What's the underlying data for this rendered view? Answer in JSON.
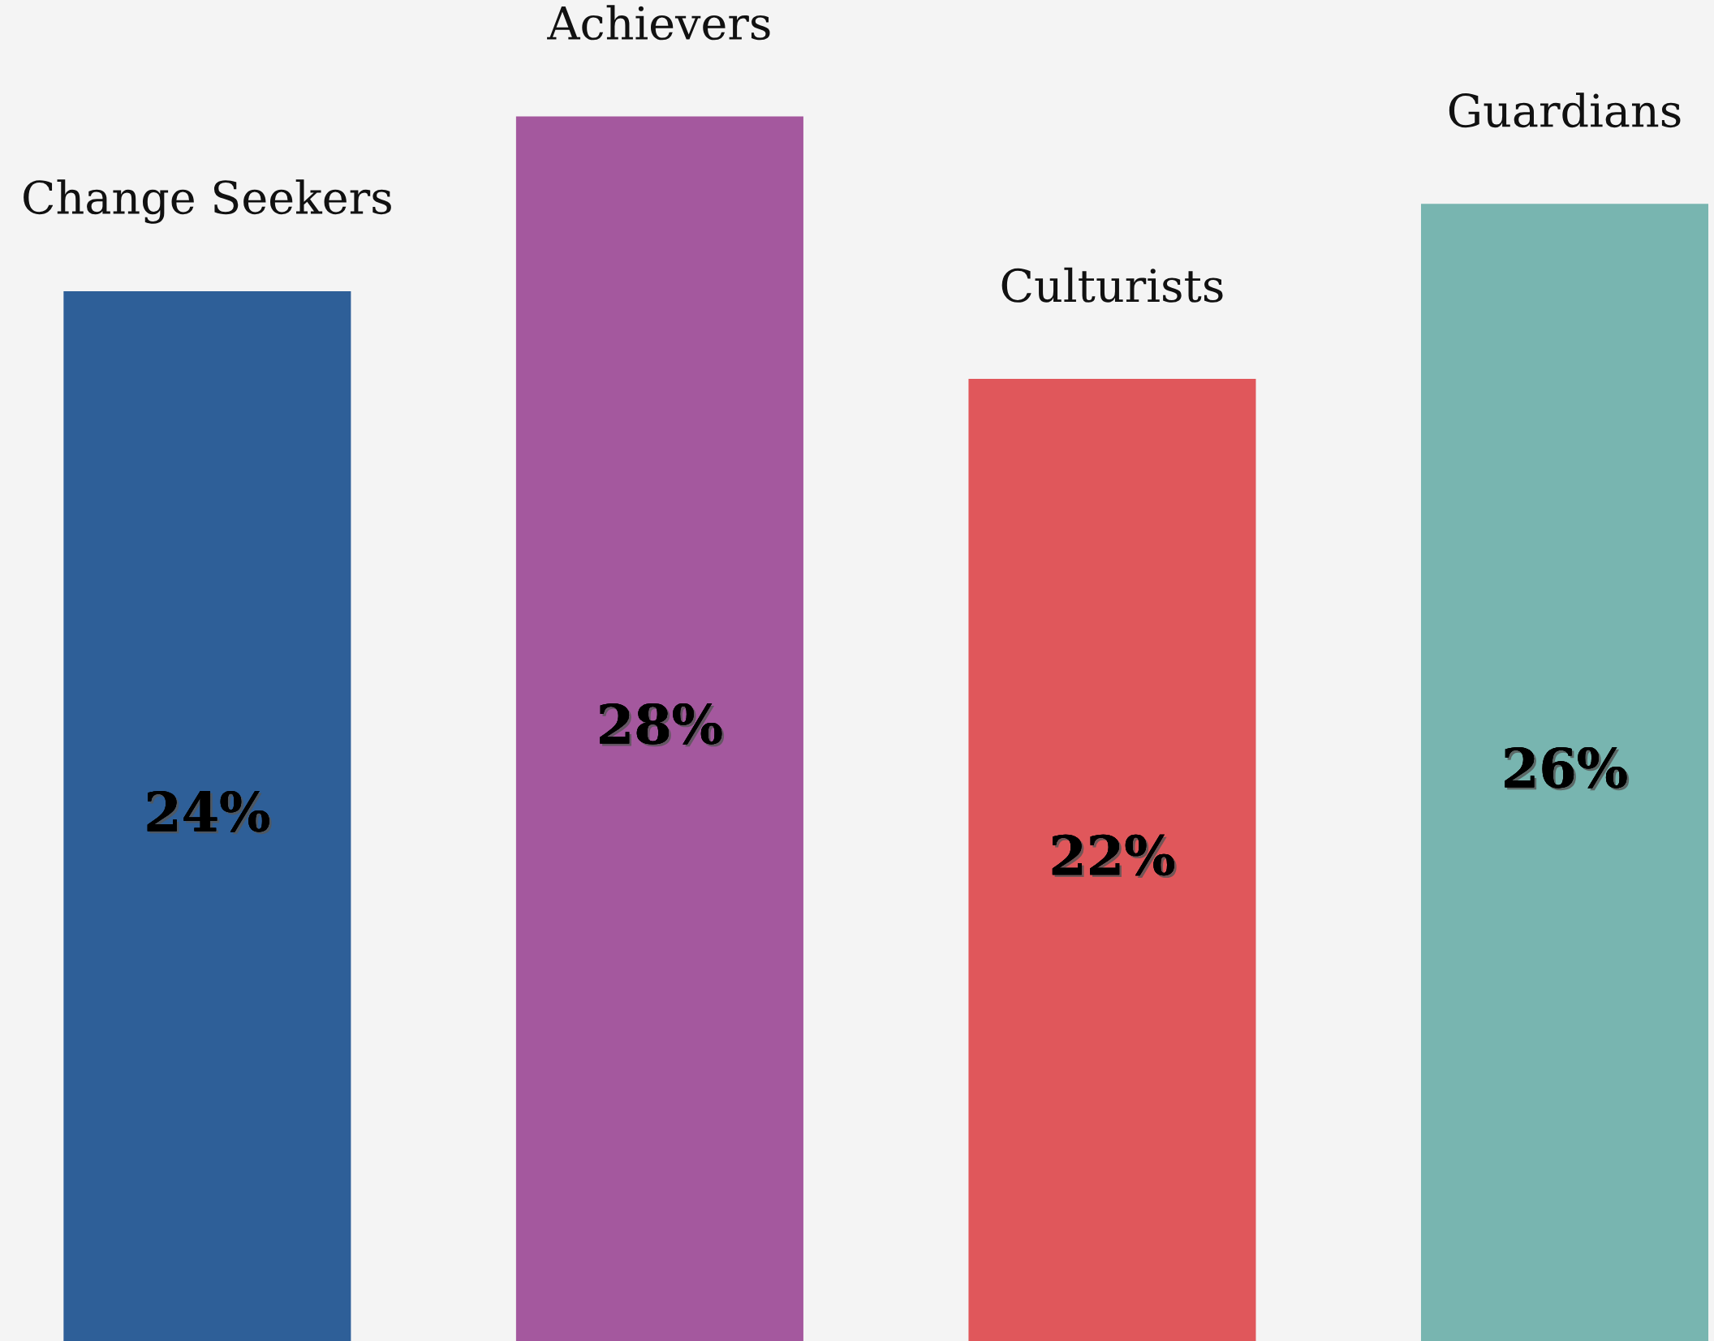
{
  "chart_data": {
    "type": "bar",
    "categories": [
      "Change Seekers",
      "Achievers",
      "Culturists",
      "Guardians"
    ],
    "values": [
      24,
      28,
      22,
      26
    ],
    "colors": [
      "#2e5f98",
      "#a4589e",
      "#e0575b",
      "#78b5b0"
    ],
    "value_labels": [
      "24%",
      "28%",
      "22%",
      "26%"
    ]
  }
}
